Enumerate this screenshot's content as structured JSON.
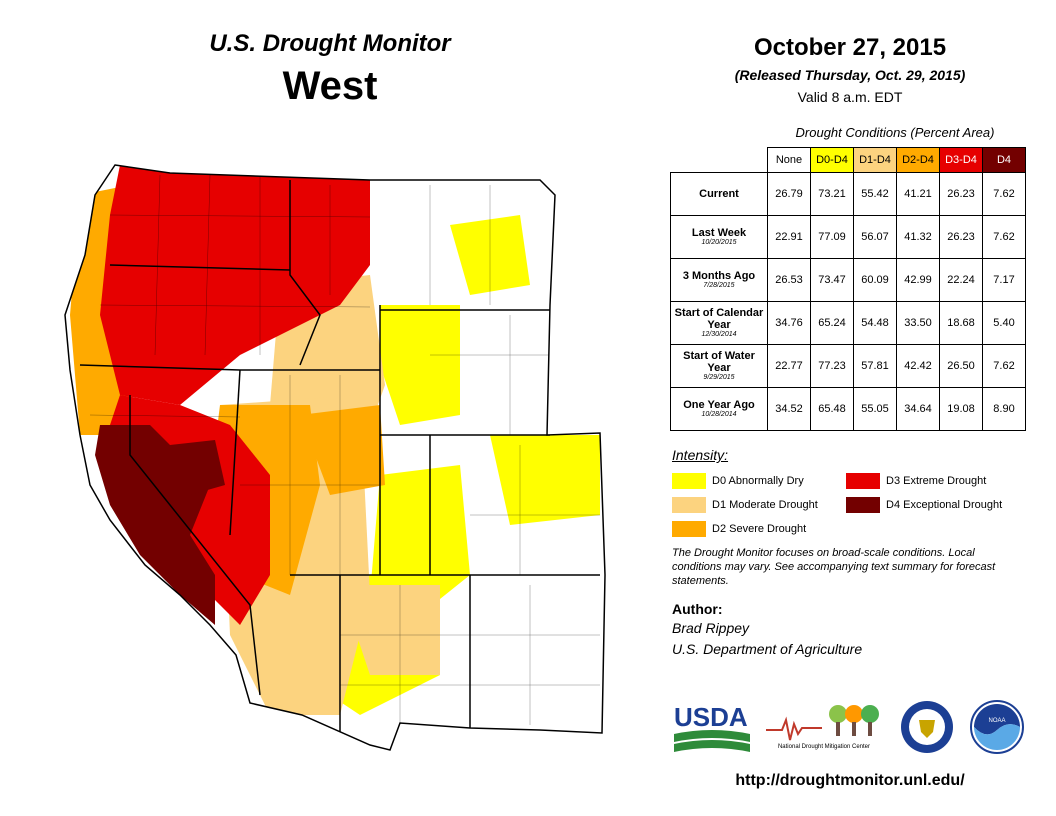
{
  "header": {
    "title": "U.S. Drought Monitor",
    "region": "West",
    "date": "October 27, 2015",
    "released": "(Released Thursday, Oct. 29, 2015)",
    "valid": "Valid  8 a.m. EDT"
  },
  "table": {
    "caption": "Drought Conditions (Percent Area)",
    "columns": [
      {
        "label": "None",
        "color": "#ffffff",
        "text_color": "#000000"
      },
      {
        "label": "D0-D4",
        "color": "#ffff00",
        "text_color": "#000000"
      },
      {
        "label": "D1-D4",
        "color": "#fcd37f",
        "text_color": "#000000"
      },
      {
        "label": "D2-D4",
        "color": "#ffaa00",
        "text_color": "#000000"
      },
      {
        "label": "D3-D4",
        "color": "#e60000",
        "text_color": "#ffffff"
      },
      {
        "label": "D4",
        "color": "#730000",
        "text_color": "#ffffff"
      }
    ],
    "rows": [
      {
        "label": "Current",
        "sub": "",
        "values": [
          "26.79",
          "73.21",
          "55.42",
          "41.21",
          "26.23",
          "7.62"
        ]
      },
      {
        "label": "Last Week",
        "sub": "10/20/2015",
        "values": [
          "22.91",
          "77.09",
          "56.07",
          "41.32",
          "26.23",
          "7.62"
        ]
      },
      {
        "label": "3 Months Ago",
        "sub": "7/28/2015",
        "values": [
          "26.53",
          "73.47",
          "60.09",
          "42.99",
          "22.24",
          "7.17"
        ]
      },
      {
        "label": "Start of Calendar Year",
        "sub": "12/30/2014",
        "values": [
          "34.76",
          "65.24",
          "54.48",
          "33.50",
          "18.68",
          "5.40"
        ]
      },
      {
        "label": "Start of Water Year",
        "sub": "9/29/2015",
        "values": [
          "22.77",
          "77.23",
          "57.81",
          "42.42",
          "26.50",
          "7.62"
        ]
      },
      {
        "label": "One Year Ago",
        "sub": "10/28/2014",
        "values": [
          "34.52",
          "65.48",
          "55.05",
          "34.64",
          "19.08",
          "8.90"
        ]
      }
    ]
  },
  "legend": {
    "title": "Intensity:",
    "items": [
      {
        "label": "D0 Abnormally Dry",
        "color": "#ffff00"
      },
      {
        "label": "D1 Moderate Drought",
        "color": "#fcd37f"
      },
      {
        "label": "D2 Severe Drought",
        "color": "#ffaa00"
      },
      {
        "label": "D3 Extreme Drought",
        "color": "#e60000"
      },
      {
        "label": "D4 Exceptional Drought",
        "color": "#730000"
      }
    ]
  },
  "note": "The Drought Monitor focuses on broad-scale conditions. Local conditions may vary. See accompanying text summary for forecast statements.",
  "author": {
    "heading": "Author:",
    "name": "Brad Rippey",
    "org": "U.S. Department of Agriculture"
  },
  "logos": {
    "usda": "USDA",
    "ndmc": "National Drought Mitigation Center",
    "noaa": "NOAA"
  },
  "url": "http://droughtmonitor.unl.edu/"
}
